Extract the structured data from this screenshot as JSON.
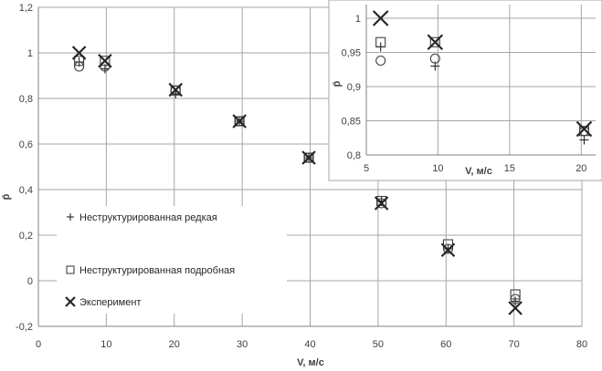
{
  "chart_data": [
    {
      "type": "scatter",
      "title": "",
      "xlabel": "V, м/с",
      "ylabel": "p̄",
      "xlim": [
        0,
        80
      ],
      "ylim": [
        -0.2,
        1.2
      ],
      "x_ticks": [
        "0",
        "10",
        "20",
        "30",
        "40",
        "50",
        "60",
        "70",
        "80"
      ],
      "y_ticks": [
        "-0,2",
        "0",
        "0,2",
        "0,4",
        "0,6",
        "0,8",
        "1",
        "1,2"
      ],
      "grid": true,
      "legend_position": "bottom-left",
      "series": [
        {
          "name": "Неструктурированная редкая",
          "marker": "plus",
          "points": [
            [
              6,
              0.96
            ],
            [
              9.8,
              0.93
            ],
            [
              20.2,
              0.82
            ],
            [
              29.6,
              0.7
            ],
            [
              39.8,
              0.54
            ],
            [
              50.5,
              0.35
            ],
            [
              60.3,
              0.14
            ],
            [
              70.2,
              -0.09
            ]
          ]
        },
        {
          "name": "Неструктурированная подробная",
          "marker": "square",
          "points": [
            [
              6,
              0.965
            ],
            [
              9.8,
              0.965
            ],
            [
              20.2,
              0.835
            ],
            [
              29.6,
              0.7
            ],
            [
              39.8,
              0.54
            ],
            [
              50.5,
              0.35
            ],
            [
              60.3,
              0.16
            ],
            [
              70.2,
              -0.06
            ]
          ]
        },
        {
          "name": "",
          "marker": "circle",
          "points": [
            [
              6,
              0.94
            ],
            [
              9.8,
              0.94
            ],
            [
              20.2,
              0.835
            ],
            [
              29.6,
              0.7
            ],
            [
              39.8,
              0.54
            ],
            [
              50.5,
              0.34
            ],
            [
              60.3,
              0.14
            ],
            [
              70.2,
              -0.08
            ]
          ]
        },
        {
          "name": "Эксперимент",
          "marker": "x",
          "points": [
            [
              6,
              1.0
            ],
            [
              9.8,
              0.965
            ],
            [
              20.2,
              0.838
            ],
            [
              29.6,
              0.7
            ],
            [
              39.8,
              0.54
            ],
            [
              50.5,
              0.34
            ],
            [
              60.3,
              0.135
            ],
            [
              70.2,
              -0.12
            ]
          ]
        }
      ]
    },
    {
      "type": "scatter",
      "title": "",
      "xlabel": "V, м/с",
      "ylabel": "p̄",
      "xlim": [
        5,
        21
      ],
      "ylim": [
        0.8,
        1.02
      ],
      "x_ticks": [
        "5",
        "10",
        "15",
        "20"
      ],
      "y_ticks": [
        "0,8",
        "0,85",
        "0,9",
        "0,95",
        "1"
      ],
      "grid": true,
      "series": [
        {
          "name": "Неструктурированная редкая",
          "marker": "plus",
          "points": [
            [
              6,
              0.958
            ],
            [
              9.8,
              0.93
            ],
            [
              20.2,
              0.822
            ]
          ]
        },
        {
          "name": "Неструктурированная подробная",
          "marker": "square",
          "points": [
            [
              6,
              0.965
            ],
            [
              9.8,
              0.965
            ],
            [
              20.2,
              0.835
            ]
          ]
        },
        {
          "name": "",
          "marker": "circle",
          "points": [
            [
              6,
              0.938
            ],
            [
              9.8,
              0.941
            ],
            [
              20.2,
              0.835
            ]
          ]
        },
        {
          "name": "Эксперимент",
          "marker": "x",
          "points": [
            [
              6,
              1.0
            ],
            [
              9.8,
              0.965
            ],
            [
              20.2,
              0.838
            ]
          ]
        }
      ]
    }
  ],
  "legend": {
    "items": [
      {
        "marker": "plus",
        "label": "Неструктурированная редкая"
      },
      {
        "marker": "square",
        "label": "Неструктурированная подробная"
      },
      {
        "marker": "x",
        "label": "Эксперимент"
      }
    ]
  },
  "colors": {
    "grid": "#a6a6a6",
    "axis": "#808080",
    "marker": "#262626",
    "marker_light": "#404040"
  }
}
